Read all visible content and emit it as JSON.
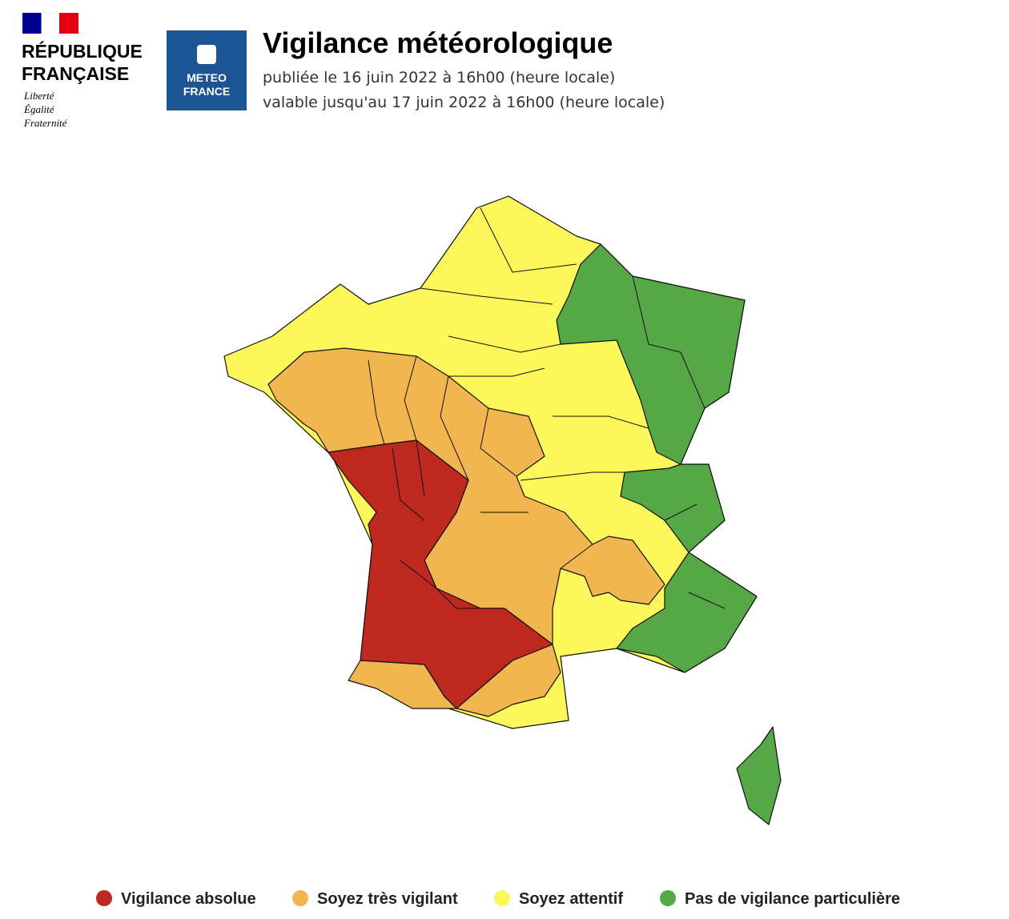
{
  "header": {
    "republic": [
      "RÉPUBLIQUE",
      "FRANÇAISE"
    ],
    "motto": [
      "Liberté",
      "Égalité",
      "Fraternité"
    ],
    "logo": [
      "METEO",
      "FRANCE"
    ],
    "title": "Vigilance météorologique",
    "published": "publiée le 16 juin 2022 à 16h00 (heure locale)",
    "valid": "valable jusqu'au 17 juin 2022 à 16h00 (heure locale)"
  },
  "legend": [
    {
      "label": "Vigilance absolue",
      "color": "#bd291e"
    },
    {
      "label": "Soyez très vigilant",
      "color": "#f2b650"
    },
    {
      "label": "Soyez attentif",
      "color": "#fcf75a"
    },
    {
      "label": "Pas de vigilance particulière",
      "color": "#56a846"
    }
  ]
}
